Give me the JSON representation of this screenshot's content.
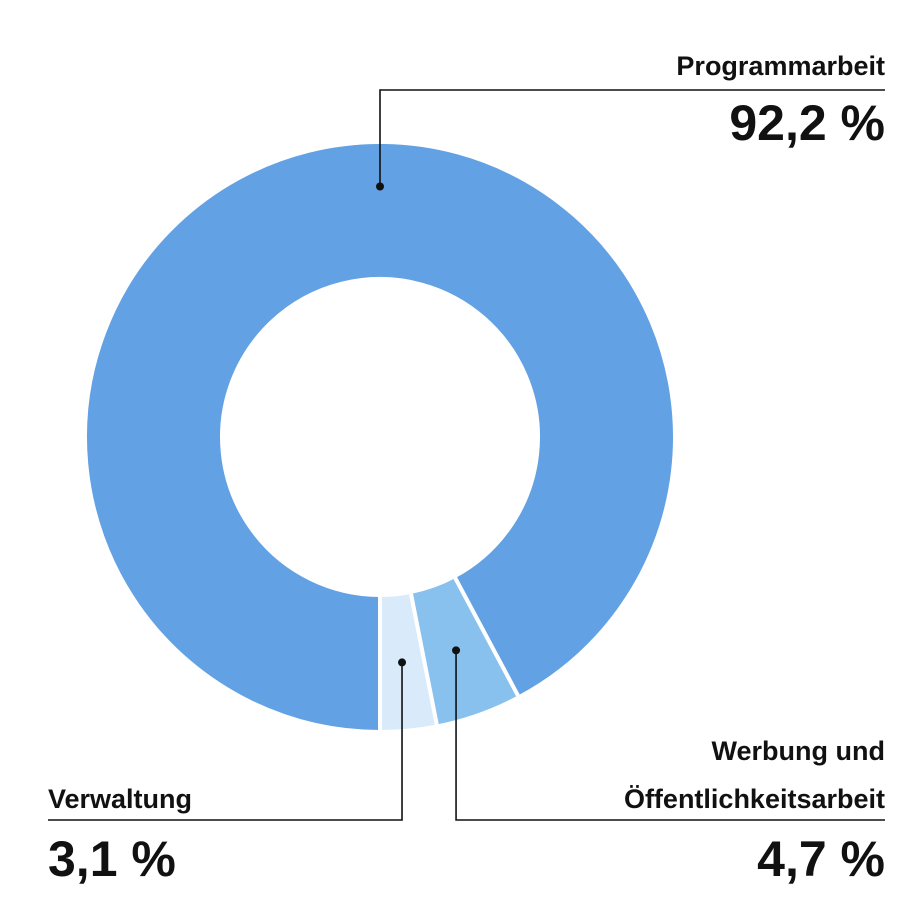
{
  "chart_data": {
    "type": "pie",
    "title": "",
    "categories": [
      "Programmarbeit",
      "Werbung und Öffentlichkeitsarbeit",
      "Verwaltung"
    ],
    "values": [
      92.2,
      4.7,
      3.1
    ],
    "value_labels": [
      "92,2 %",
      "4,7 %",
      "3,1 %"
    ],
    "label_lines": [
      [
        "Programmarbeit"
      ],
      [
        "Werbung und",
        "Öffentlichkeitsarbeit"
      ],
      [
        "Verwaltung"
      ]
    ],
    "colors": [
      "#62a1e3",
      "#88c0ee",
      "#d9eafa"
    ],
    "donut": true,
    "legend": "none"
  }
}
